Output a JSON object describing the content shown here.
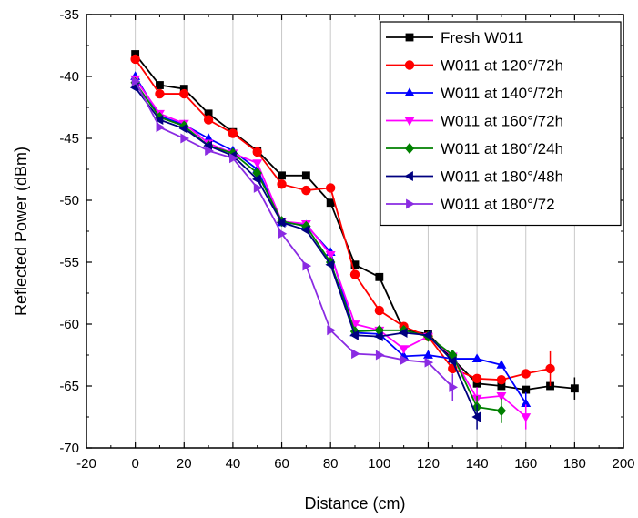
{
  "chart_data": {
    "type": "line",
    "title": "",
    "xlabel": "Distance (cm)",
    "ylabel": "Reflected Power (dBm)",
    "xlim": [
      -20,
      200
    ],
    "ylim": [
      -70,
      -35
    ],
    "xticks": [
      -20,
      0,
      20,
      40,
      60,
      80,
      100,
      120,
      140,
      160,
      180,
      200
    ],
    "yticks": [
      -70,
      -65,
      -60,
      -55,
      -50,
      -45,
      -40,
      -35
    ],
    "grid": "vertical",
    "legend_position": "top-right",
    "series": [
      {
        "name": "Fresh W011",
        "color": "#000000",
        "marker": "square",
        "x": [
          0,
          10,
          20,
          30,
          40,
          50,
          60,
          70,
          80,
          90,
          100,
          110,
          120,
          130,
          140,
          150,
          160,
          170,
          180
        ],
        "y": [
          -38.2,
          -40.7,
          -41.0,
          -43.0,
          -44.5,
          -46.0,
          -48.0,
          -48.0,
          -50.2,
          -55.2,
          -56.2,
          -60.5,
          -60.8,
          -62.8,
          -64.8,
          -65.0,
          -65.3,
          -65.0,
          -65.2
        ],
        "err": [
          0,
          0,
          0,
          0,
          0,
          0,
          0,
          0,
          0,
          0,
          0,
          0,
          0,
          0,
          0,
          0,
          0,
          0,
          0.9
        ]
      },
      {
        "name": "W011 at 120°/72h",
        "color": "#ff0000",
        "marker": "circle",
        "x": [
          0,
          10,
          20,
          30,
          40,
          50,
          60,
          70,
          80,
          90,
          100,
          110,
          120,
          130,
          140,
          150,
          160,
          170
        ],
        "y": [
          -38.6,
          -41.4,
          -41.4,
          -43.5,
          -44.6,
          -46.1,
          -48.7,
          -49.2,
          -49.0,
          -56.0,
          -58.9,
          -60.2,
          -61.0,
          -63.6,
          -64.4,
          -64.5,
          -64.0,
          -63.6
        ],
        "err": [
          0,
          0,
          0,
          0,
          0,
          0,
          0,
          0,
          0,
          0,
          0,
          0,
          0,
          0,
          0,
          0,
          0,
          1.4
        ]
      },
      {
        "name": "W011 at 140°/72h",
        "color": "#0000ff",
        "marker": "triangle-up",
        "x": [
          0,
          10,
          20,
          30,
          40,
          50,
          60,
          70,
          80,
          90,
          100,
          110,
          120,
          130,
          140,
          150,
          160
        ],
        "y": [
          -40.0,
          -43.2,
          -43.9,
          -45.0,
          -46.0,
          -47.5,
          -51.8,
          -52.0,
          -54.2,
          -60.7,
          -60.8,
          -62.6,
          -62.5,
          -62.8,
          -62.8,
          -63.3,
          -66.4
        ],
        "err": [
          0,
          0,
          0,
          0,
          0,
          0,
          0,
          0,
          0,
          0,
          0,
          0,
          0,
          0,
          0,
          0,
          0.9
        ]
      },
      {
        "name": "W011 at 160°/72h",
        "color": "#ff00ff",
        "marker": "triangle-down",
        "x": [
          0,
          10,
          20,
          30,
          40,
          50,
          60,
          70,
          80,
          90,
          100,
          110,
          120,
          130,
          140,
          150,
          160
        ],
        "y": [
          -40.2,
          -43.0,
          -43.8,
          -45.4,
          -46.2,
          -47.0,
          -51.7,
          -51.9,
          -54.4,
          -60.0,
          -60.5,
          -62.0,
          -61.0,
          -62.6,
          -66.0,
          -65.8,
          -67.5
        ],
        "err": [
          0,
          0,
          0,
          0,
          0,
          0,
          0,
          0,
          0,
          0,
          0,
          0,
          0,
          0,
          0.9,
          0,
          1.0
        ]
      },
      {
        "name": "W011 at 180°/24h",
        "color": "#008000",
        "marker": "diamond",
        "x": [
          0,
          10,
          20,
          30,
          40,
          50,
          60,
          70,
          80,
          90,
          100,
          110,
          120,
          130,
          140,
          150
        ],
        "y": [
          -40.5,
          -43.3,
          -44.0,
          -45.6,
          -46.2,
          -47.8,
          -51.7,
          -52.1,
          -55.0,
          -60.6,
          -60.5,
          -60.5,
          -61.0,
          -62.5,
          -66.7,
          -67.0
        ],
        "err": [
          0,
          0,
          0,
          0,
          0,
          0,
          0,
          0,
          0,
          0,
          0,
          0,
          0,
          0,
          0.9,
          1.0
        ]
      },
      {
        "name": "W011 at 180°/48h",
        "color": "#000080",
        "marker": "triangle-left",
        "x": [
          0,
          10,
          20,
          30,
          40,
          50,
          60,
          70,
          80,
          90,
          100,
          110,
          120,
          130,
          140
        ],
        "y": [
          -40.9,
          -43.5,
          -44.2,
          -45.6,
          -46.4,
          -48.3,
          -51.8,
          -52.4,
          -55.2,
          -60.9,
          -61.0,
          -60.7,
          -60.9,
          -63.0,
          -67.5
        ],
        "err": [
          0,
          0,
          0,
          0,
          0,
          0,
          0,
          0,
          0,
          0,
          0,
          0,
          0,
          0,
          1.0
        ]
      },
      {
        "name": "W011 at 180°/72",
        "color": "#8a2be2",
        "marker": "triangle-right",
        "x": [
          0,
          10,
          20,
          30,
          40,
          50,
          60,
          70,
          80,
          90,
          100,
          110,
          120,
          130
        ],
        "y": [
          -40.4,
          -44.1,
          -45.0,
          -46.0,
          -46.6,
          -49.0,
          -52.7,
          -55.3,
          -60.5,
          -62.4,
          -62.5,
          -62.9,
          -63.1,
          -65.1
        ],
        "err": [
          0,
          0,
          0,
          0,
          0,
          0,
          0,
          0,
          0,
          0,
          0,
          0,
          0,
          1.1
        ]
      }
    ]
  }
}
